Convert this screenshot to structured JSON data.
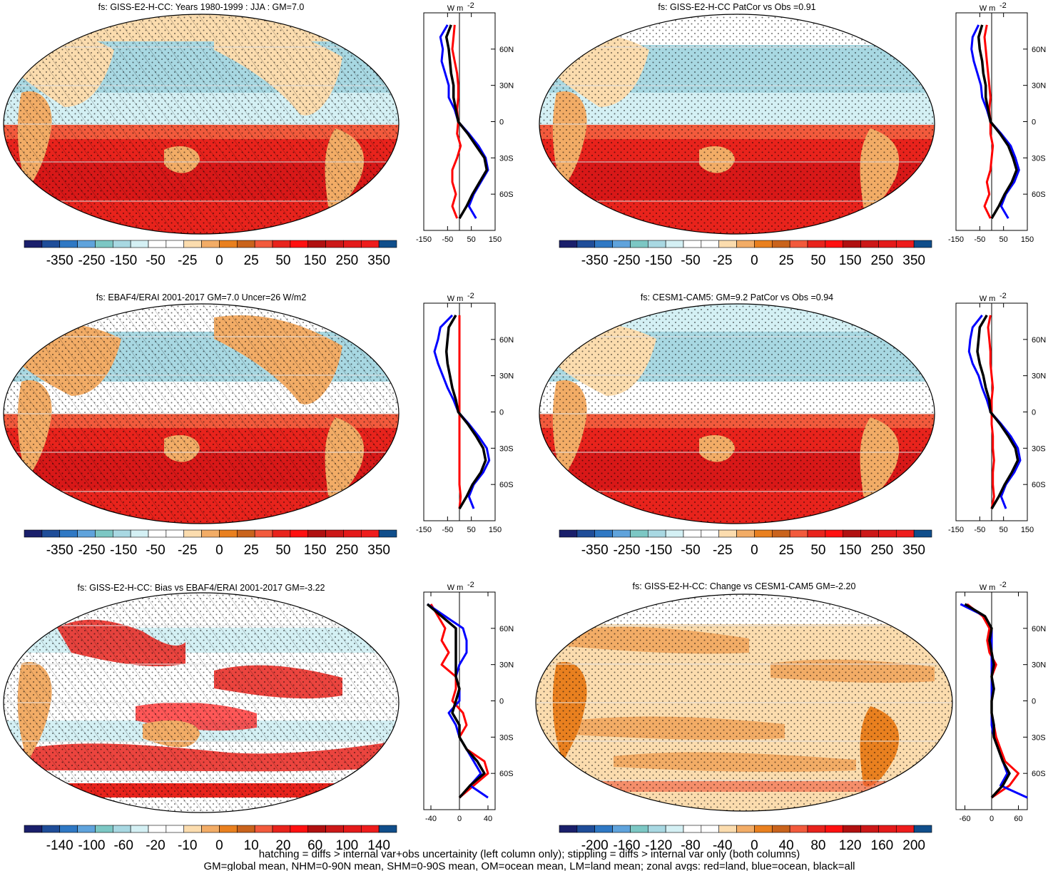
{
  "footer": {
    "line1": "hatching = diffs > internal var+obs uncertainity (left column only); stippling = diffs > internal var only (both columns)",
    "line2": "GM=global mean, NHM=0-90N mean, SHM=0-90S mean, OM=ocean mean, LM=land mean; zonal avgs: red=land, blue=ocean, black=all"
  },
  "colors": {
    "palette": [
      "#1a1f6b",
      "#1f4d99",
      "#2f78c4",
      "#5fa3dc",
      "#7cc7c4",
      "#a8d8e2",
      "#d4f0f4",
      "#ffffff",
      "#ffffff",
      "#fbdcae",
      "#f2ac66",
      "#e9801f",
      "#c9631c",
      "#f25a3c",
      "#e8231c",
      "#ff1010",
      "#b01010",
      "#cc1818",
      "#e41a1a",
      "#ee1c1c",
      "#104e8b"
    ],
    "land": "red",
    "ocean": "blue",
    "all": "black"
  },
  "chart_data": [
    {
      "type": "map",
      "title": "fs: GISS-E2-H-CC: Years 1980-1999 : JJA : GM=7.0",
      "colorbar": {
        "labels": [
          "-350",
          "-250",
          "-150",
          "-50",
          "-25",
          "0",
          "25",
          "50",
          "150",
          "250",
          "350"
        ]
      },
      "zonal": {
        "unit": "W m",
        "unit_exp": "-2",
        "xticks": [
          "-150",
          "-50",
          "50",
          "150"
        ],
        "xlim": [
          -150,
          150
        ],
        "yticks": [
          "60N",
          "30N",
          "0",
          "30S",
          "60S"
        ],
        "lat": [
          80,
          70,
          60,
          50,
          40,
          30,
          20,
          10,
          0,
          -10,
          -20,
          -30,
          -40,
          -50,
          -60,
          -70,
          -80
        ],
        "land": [
          -20,
          -25,
          -30,
          -20,
          -10,
          -5,
          -5,
          -10,
          -5,
          -10,
          5,
          -10,
          -30,
          -30,
          -15,
          -30,
          -10
        ],
        "ocean": [
          -50,
          -80,
          -70,
          -75,
          -60,
          -45,
          -45,
          -20,
          -5,
          40,
          80,
          110,
          120,
          90,
          60,
          40,
          70
        ],
        "all": [
          -35,
          -55,
          -45,
          -40,
          -35,
          -25,
          -25,
          -15,
          -5,
          35,
          70,
          105,
          115,
          85,
          55,
          30,
          0
        ]
      }
    },
    {
      "type": "map",
      "title": "fs: GISS-E2-H-CC PatCor vs Obs =0.91",
      "colorbar": {
        "labels": [
          "-350",
          "-250",
          "-150",
          "-50",
          "-25",
          "0",
          "25",
          "50",
          "150",
          "250",
          "350"
        ]
      },
      "zonal": {
        "unit": "W m",
        "unit_exp": "-2",
        "xticks": [
          "-150",
          "-50",
          "50",
          "150"
        ],
        "xlim": [
          -150,
          150
        ],
        "yticks": [
          "60N",
          "30N",
          "0",
          "30S",
          "60S"
        ],
        "lat": [
          80,
          70,
          60,
          50,
          40,
          30,
          20,
          10,
          0,
          -10,
          -20,
          -30,
          -40,
          -50,
          -60,
          -70,
          -80
        ],
        "land": [
          -20,
          -30,
          -25,
          -20,
          -15,
          -10,
          -5,
          -10,
          -5,
          -5,
          5,
          0,
          -5,
          -20,
          -10,
          -30,
          -5
        ],
        "ocean": [
          -55,
          -80,
          -85,
          -75,
          -60,
          -45,
          -40,
          -20,
          -5,
          40,
          80,
          100,
          115,
          95,
          60,
          40,
          70
        ],
        "all": [
          -40,
          -55,
          -50,
          -40,
          -35,
          -25,
          -25,
          -15,
          -5,
          35,
          70,
          90,
          105,
          85,
          55,
          30,
          0
        ]
      }
    },
    {
      "type": "map",
      "title": "fs: EBAF4/ERAI 2001-2017 GM=7.0 Uncer=26 W/m2",
      "colorbar": {
        "labels": [
          "-350",
          "-250",
          "-150",
          "-50",
          "-25",
          "0",
          "25",
          "50",
          "150",
          "250",
          "350"
        ]
      },
      "zonal": {
        "unit": "W m",
        "unit_exp": "-2",
        "xticks": [
          "-150",
          "-50",
          "50",
          "150"
        ],
        "xlim": [
          -150,
          150
        ],
        "yticks": [
          "60N",
          "30N",
          "0",
          "30S",
          "60S"
        ],
        "lat": [
          80,
          70,
          60,
          50,
          40,
          30,
          20,
          10,
          0,
          -10,
          -20,
          -30,
          -40,
          -50,
          -60,
          -70,
          -80
        ],
        "land": [
          0,
          0,
          0,
          0,
          0,
          0,
          0,
          0,
          0,
          0,
          0,
          0,
          0,
          0,
          0,
          5,
          0
        ],
        "ocean": [
          -30,
          -80,
          -90,
          -105,
          -90,
          -70,
          -50,
          -25,
          -5,
          40,
          80,
          115,
          125,
          100,
          60,
          40,
          60
        ],
        "all": [
          -15,
          -45,
          -50,
          -55,
          -50,
          -40,
          -30,
          -15,
          -5,
          35,
          70,
          100,
          110,
          90,
          55,
          30,
          0
        ]
      }
    },
    {
      "type": "map",
      "title": "fs: CESM1-CAM5: GM=9.2 PatCor vs Obs =0.94",
      "colorbar": {
        "labels": [
          "-350",
          "-250",
          "-150",
          "-50",
          "-25",
          "0",
          "25",
          "50",
          "150",
          "250",
          "350"
        ]
      },
      "zonal": {
        "unit": "W m",
        "unit_exp": "-2",
        "xticks": [
          "-150",
          "-50",
          "50",
          "150"
        ],
        "xlim": [
          -150,
          150
        ],
        "yticks": [
          "60N",
          "30N",
          "0",
          "30S",
          "60S"
        ],
        "lat": [
          80,
          70,
          60,
          50,
          40,
          30,
          20,
          10,
          0,
          -10,
          -20,
          -30,
          -40,
          -50,
          -60,
          -70,
          -80
        ],
        "land": [
          -5,
          -15,
          -10,
          -5,
          -5,
          0,
          5,
          0,
          0,
          0,
          5,
          5,
          10,
          5,
          5,
          10,
          0
        ],
        "ocean": [
          -40,
          -80,
          -90,
          -95,
          -80,
          -55,
          -40,
          -20,
          -5,
          40,
          80,
          110,
          120,
          95,
          60,
          40,
          60
        ],
        "all": [
          -20,
          -50,
          -55,
          -60,
          -50,
          -35,
          -25,
          -10,
          -5,
          35,
          70,
          100,
          110,
          85,
          55,
          30,
          0
        ]
      }
    },
    {
      "type": "map",
      "title": "fs: GISS-E2-H-CC: Bias vs EBAF4/ERAI 2001-2017 GM=-3.22",
      "colorbar": {
        "labels": [
          "-140",
          "-100",
          "-60",
          "-20",
          "-10",
          "0",
          "10",
          "20",
          "60",
          "100",
          "140"
        ]
      },
      "zonal": {
        "unit": "W m",
        "unit_exp": "-2",
        "xticks": [
          "-40",
          "0",
          "40"
        ],
        "xlim": [
          -50,
          50
        ],
        "yticks": [
          "60N",
          "30N",
          "0",
          "30S",
          "60S"
        ],
        "lat": [
          80,
          70,
          60,
          50,
          40,
          30,
          20,
          10,
          0,
          -10,
          -20,
          -30,
          -40,
          -50,
          -60,
          -70,
          -80
        ],
        "land": [
          -40,
          -30,
          -20,
          -25,
          -15,
          -25,
          -5,
          -5,
          -10,
          5,
          10,
          0,
          10,
          35,
          40,
          20,
          0
        ],
        "ocean": [
          -45,
          -20,
          5,
          10,
          10,
          0,
          -5,
          0,
          0,
          -15,
          -5,
          0,
          10,
          20,
          30,
          15,
          40
        ],
        "all": [
          -45,
          -25,
          -5,
          -5,
          -5,
          -5,
          -5,
          0,
          -5,
          -10,
          0,
          0,
          10,
          25,
          35,
          15,
          0
        ]
      }
    },
    {
      "type": "map",
      "title": "fs: GISS-E2-H-CC: Change vs CESM1-CAM5 GM=-2.20",
      "colorbar": {
        "labels": [
          "-200",
          "-160",
          "-120",
          "-80",
          "-40",
          "0",
          "40",
          "80",
          "120",
          "160",
          "200"
        ]
      },
      "zonal": {
        "unit": "W m",
        "unit_exp": "-2",
        "xticks": [
          "-60",
          "0",
          "60"
        ],
        "xlim": [
          -80,
          80
        ],
        "yticks": [
          "60N",
          "30N",
          "0",
          "30S",
          "60S"
        ],
        "lat": [
          80,
          70,
          60,
          50,
          40,
          30,
          20,
          10,
          0,
          -10,
          -20,
          -30,
          -40,
          -50,
          -60,
          -70,
          -80
        ],
        "land": [
          -55,
          -20,
          -5,
          -10,
          -5,
          10,
          0,
          5,
          0,
          0,
          5,
          10,
          20,
          30,
          60,
          40,
          0
        ],
        "ocean": [
          -70,
          -15,
          0,
          0,
          0,
          0,
          0,
          0,
          0,
          0,
          0,
          5,
          15,
          25,
          35,
          20,
          80
        ],
        "all": [
          -60,
          -15,
          0,
          -5,
          0,
          5,
          0,
          5,
          0,
          0,
          5,
          5,
          15,
          25,
          40,
          25,
          0
        ]
      }
    }
  ]
}
